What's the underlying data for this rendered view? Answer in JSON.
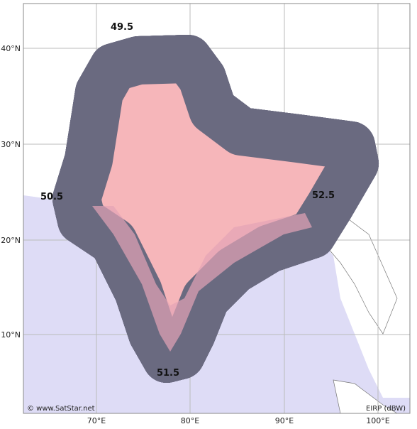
{
  "map": {
    "lat_labels": [
      "40°N",
      "30°N",
      "20°N",
      "10°N"
    ],
    "lon_labels": [
      "70°E",
      "80°E",
      "90°E",
      "100°E"
    ],
    "contour_labels": [
      "49.5",
      "50.5",
      "51.5",
      "52.5"
    ],
    "credit": "© www.SatStar.net",
    "unit": "EIRP (dBW)"
  }
}
